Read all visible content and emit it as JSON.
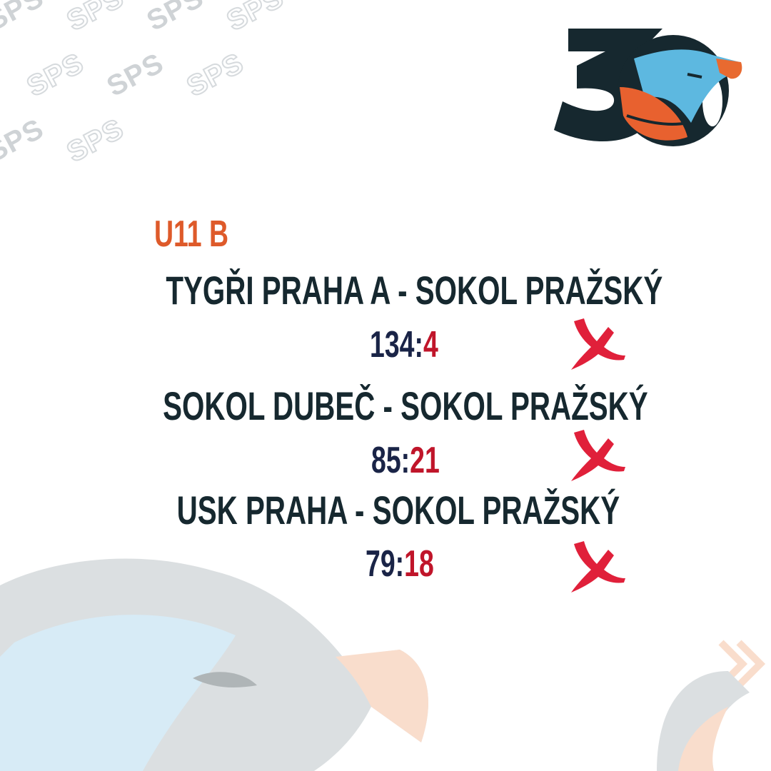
{
  "watermark": {
    "text": "SPS"
  },
  "logo": {
    "text": "30"
  },
  "category": "U11 B",
  "matches": [
    {
      "teams": "TYGŘI PRAHA A - SOKOL PRAŽSKÝ",
      "home_score": "134",
      "separator": ":",
      "away_score": "4",
      "result_icon": "x-mark-icon"
    },
    {
      "teams": "SOKOL DUBEČ - SOKOL PRAŽSKÝ",
      "home_score": "85",
      "separator": ":",
      "away_score": "21",
      "result_icon": "x-mark-icon"
    },
    {
      "teams": "USK PRAHA - SOKOL PRAŽSKÝ",
      "home_score": "79",
      "separator": ":",
      "away_score": "18",
      "result_icon": "x-mark-icon"
    }
  ],
  "colors": {
    "text": "#16282f",
    "category": "#de5a2a",
    "loss_score": "#c0152a",
    "home_score": "#1a2447",
    "x_mark": "#e0203a"
  }
}
